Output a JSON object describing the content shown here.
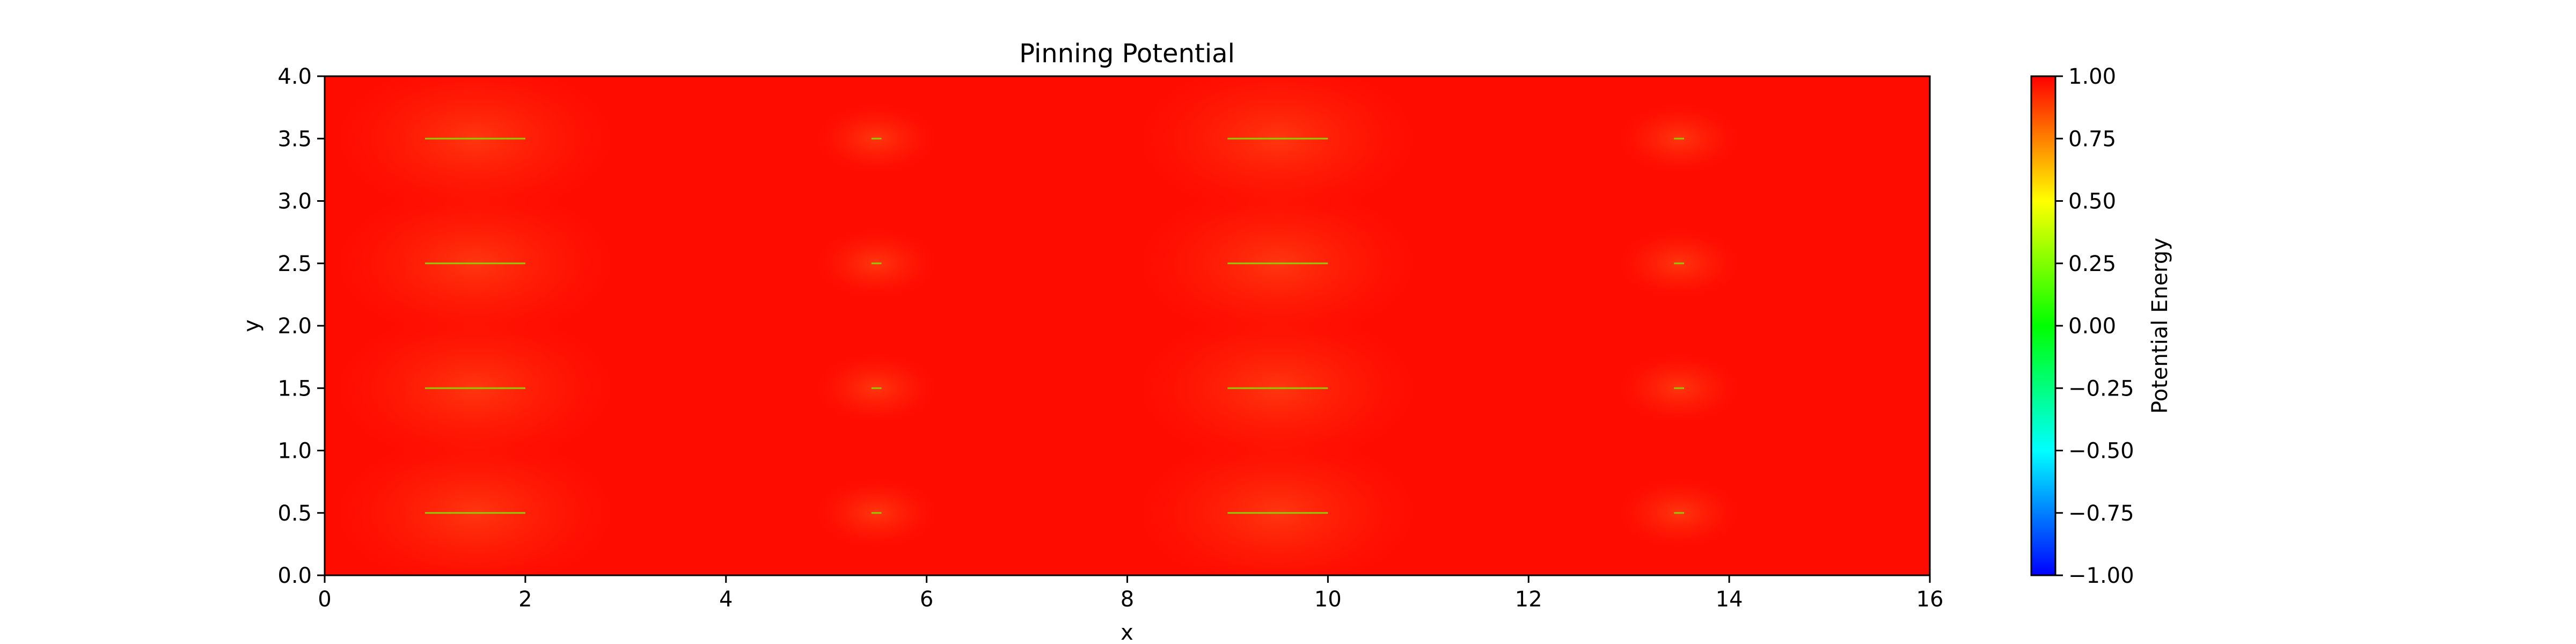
{
  "chart_data": {
    "type": "heatmap",
    "title": "Pinning Potential",
    "xlabel": "x",
    "ylabel": "y",
    "xlim": [
      0,
      16
    ],
    "ylim": [
      0,
      4
    ],
    "x_ticks": [
      "0",
      "2",
      "4",
      "6",
      "8",
      "10",
      "12",
      "14",
      "16"
    ],
    "y_ticks": [
      "0.0",
      "0.5",
      "1.0",
      "1.5",
      "2.0",
      "2.5",
      "3.0",
      "3.5",
      "4.0"
    ],
    "colorbar": {
      "label": "Potential Energy",
      "range": [
        -1.0,
        1.0
      ],
      "ticks": [
        "1.00",
        "0.75",
        "0.50",
        "0.25",
        "0.00",
        "−0.25",
        "−0.50",
        "−0.75",
        "−1.00"
      ],
      "colormap": [
        "#0000ff",
        "#00ffff",
        "#00ff00",
        "#ffff00",
        "#ff0000"
      ]
    },
    "background_value": 1.0,
    "background_color": "#ff0c00",
    "pinning_sites": [
      {
        "x_start": 1.0,
        "x_end": 2.0,
        "y": 0.5,
        "min_value": 0.3,
        "halo_radius": 1.0
      },
      {
        "x_start": 1.0,
        "x_end": 2.0,
        "y": 1.5,
        "min_value": 0.3,
        "halo_radius": 1.0
      },
      {
        "x_start": 1.0,
        "x_end": 2.0,
        "y": 2.5,
        "min_value": 0.3,
        "halo_radius": 1.0
      },
      {
        "x_start": 1.0,
        "x_end": 2.0,
        "y": 3.5,
        "min_value": 0.3,
        "halo_radius": 1.0
      },
      {
        "x_start": 5.45,
        "x_end": 5.55,
        "y": 0.5,
        "min_value": 0.3,
        "halo_radius": 0.6
      },
      {
        "x_start": 5.45,
        "x_end": 5.55,
        "y": 1.5,
        "min_value": 0.3,
        "halo_radius": 0.6
      },
      {
        "x_start": 5.45,
        "x_end": 5.55,
        "y": 2.5,
        "min_value": 0.3,
        "halo_radius": 0.6
      },
      {
        "x_start": 5.45,
        "x_end": 5.55,
        "y": 3.5,
        "min_value": 0.3,
        "halo_radius": 0.6
      },
      {
        "x_start": 9.0,
        "x_end": 10.0,
        "y": 0.5,
        "min_value": 0.3,
        "halo_radius": 1.0
      },
      {
        "x_start": 9.0,
        "x_end": 10.0,
        "y": 1.5,
        "min_value": 0.3,
        "halo_radius": 1.0
      },
      {
        "x_start": 9.0,
        "x_end": 10.0,
        "y": 2.5,
        "min_value": 0.3,
        "halo_radius": 1.0
      },
      {
        "x_start": 9.0,
        "x_end": 10.0,
        "y": 3.5,
        "min_value": 0.3,
        "halo_radius": 1.0
      },
      {
        "x_start": 13.45,
        "x_end": 13.55,
        "y": 0.5,
        "min_value": 0.3,
        "halo_radius": 0.6
      },
      {
        "x_start": 13.45,
        "x_end": 13.55,
        "y": 1.5,
        "min_value": 0.3,
        "halo_radius": 0.6
      },
      {
        "x_start": 13.45,
        "x_end": 13.55,
        "y": 2.5,
        "min_value": 0.3,
        "halo_radius": 0.6
      },
      {
        "x_start": 13.45,
        "x_end": 13.55,
        "y": 3.5,
        "min_value": 0.3,
        "halo_radius": 0.6
      }
    ],
    "site_line_color": "#8ccc00",
    "halo_color": "#ff5a1a"
  }
}
